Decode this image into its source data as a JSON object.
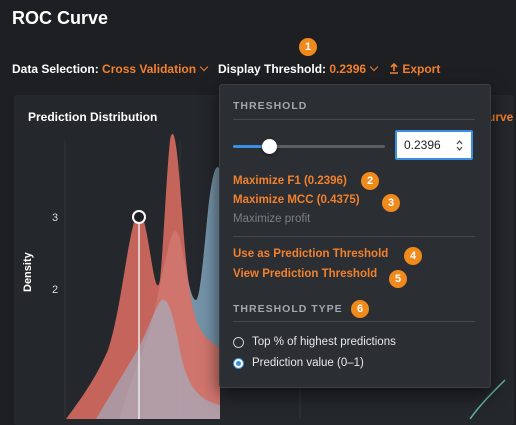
{
  "page_title": "ROC Curve",
  "toolbar": {
    "data_selection_label": "Data Selection:",
    "data_selection_value": "Cross Validation",
    "display_threshold_label": "Display Threshold:",
    "display_threshold_value": "0.2396",
    "export_label": "Export"
  },
  "panel": {
    "title": "Prediction Distribution",
    "right_title_fragment": "urve",
    "y_axis_label": "Density",
    "y_ticks": [
      "3",
      "2"
    ]
  },
  "popover": {
    "threshold_heading": "THRESHOLD",
    "slider_value": 0.2396,
    "input_value": "0.2396",
    "maximize_f1": "Maximize F1 (0.2396)",
    "maximize_mcc": "Maximize MCC (0.4375)",
    "maximize_profit": "Maximize profit",
    "use_as_threshold": "Use as Prediction Threshold",
    "view_threshold": "View Prediction Threshold",
    "threshold_type_heading": "THRESHOLD TYPE",
    "options": [
      {
        "label": "Top % of highest predictions",
        "selected": false
      },
      {
        "label": "Prediction value (0–1)",
        "selected": true
      }
    ]
  },
  "badges": [
    "1",
    "2",
    "3",
    "4",
    "5",
    "6"
  ],
  "colors": {
    "accent": "#f2812e",
    "badge": "#f08a1c",
    "slider": "#3b8fe0",
    "red_dist": "#e07063",
    "blue_dist": "#8fb7d3"
  },
  "icons": {
    "export": "upload-icon",
    "dropdown": "chevron-down-icon"
  }
}
